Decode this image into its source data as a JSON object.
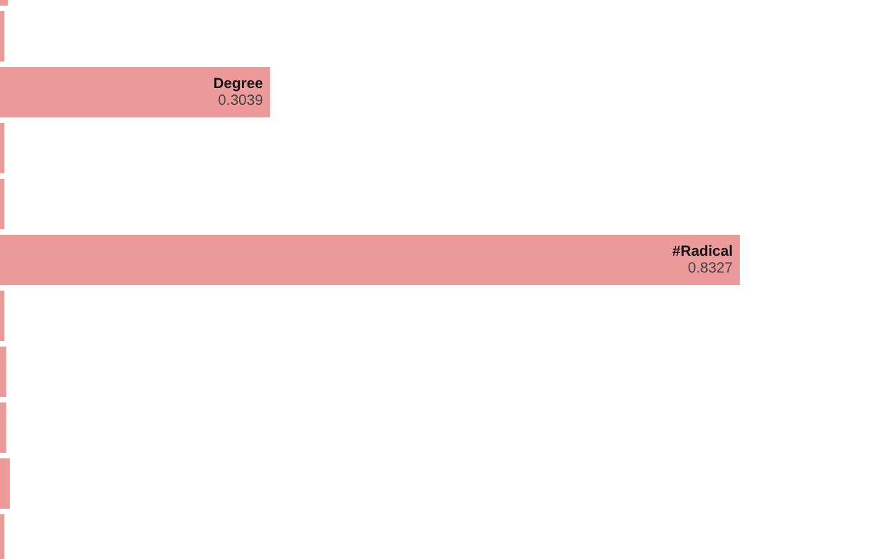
{
  "chart_data": {
    "type": "bar",
    "orientation": "horizontal",
    "categories": [
      null,
      null,
      "Degree",
      null,
      null,
      "#Radical",
      null,
      null,
      null,
      null,
      null
    ],
    "values": [
      0.009,
      0.005,
      0.3039,
      0.005,
      0.005,
      0.8327,
      0.005,
      0.007,
      0.007,
      0.011,
      0.005
    ],
    "value_labels": [
      null,
      null,
      "0.3039",
      null,
      null,
      "0.8327",
      null,
      null,
      null,
      null,
      null
    ],
    "color": "#ec9a9a",
    "tick_labels": false,
    "legend": false
  }
}
